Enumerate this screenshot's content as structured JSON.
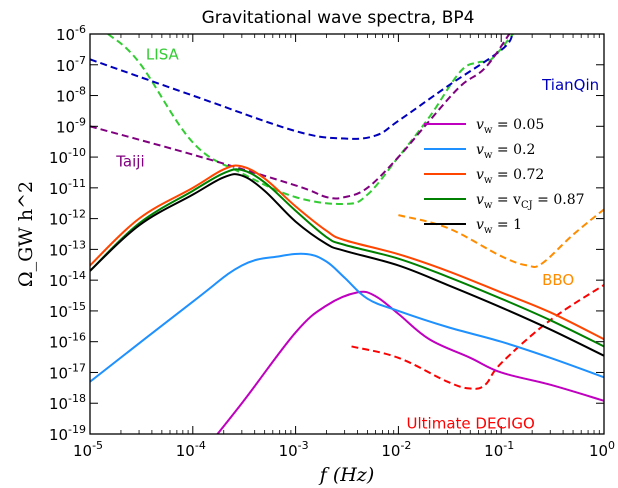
{
  "chart_data": {
    "type": "line",
    "title": "Gravitational wave spectra, BP4",
    "xlabel": "f (Hz)",
    "ylabel": "Ω_GW h^2",
    "xscale": "log",
    "yscale": "log",
    "xlim": [
      1e-05,
      1
    ],
    "ylim": [
      1e-19,
      1e-06
    ],
    "x_tick_exponents": [
      -5,
      -4,
      -3,
      -2,
      -1,
      0
    ],
    "y_tick_exponents": [
      -19,
      -18,
      -17,
      -16,
      -15,
      -14,
      -13,
      -12,
      -11,
      -10,
      -9,
      -8,
      -7,
      -6
    ],
    "tick_base": "10",
    "grid": false,
    "legend_position": "upper-right",
    "series": [
      {
        "name": "v_w = 0.05",
        "label_main": "v",
        "label_sub": "w",
        "label_rest": " = 0.05",
        "color": "#bf00bf",
        "style": "solid",
        "points": [
          [
            0.0001,
            1e-20
          ],
          [
            0.0003,
            1e-18
          ],
          [
            0.001,
            2e-16
          ],
          [
            0.002,
            1.5e-15
          ],
          [
            0.004,
            4e-15
          ],
          [
            0.006,
            3e-15
          ],
          [
            0.01,
            8e-16
          ],
          [
            0.02,
            1.2e-16
          ],
          [
            0.05,
            3e-17
          ],
          [
            0.1,
            1e-17
          ],
          [
            0.3,
            4e-18
          ],
          [
            1,
            1.2e-18
          ]
        ]
      },
      {
        "name": "v_w = 0.2",
        "label_main": "v",
        "label_sub": "w",
        "label_rest": " = 0.2",
        "color": "#1e90ff",
        "style": "solid",
        "points": [
          [
            1e-05,
            5e-18
          ],
          [
            0.0001,
            2e-15
          ],
          [
            0.0003,
            3e-14
          ],
          [
            0.0007,
            6e-14
          ],
          [
            0.0013,
            7e-14
          ],
          [
            0.002,
            4e-14
          ],
          [
            0.003,
            1.2e-14
          ],
          [
            0.005,
            2.5e-15
          ],
          [
            0.01,
            1e-15
          ],
          [
            0.03,
            3e-16
          ],
          [
            0.1,
            1e-16
          ],
          [
            0.3,
            3e-17
          ],
          [
            1,
            7e-18
          ]
        ]
      },
      {
        "name": "v_w = 0.72",
        "label_main": "v",
        "label_sub": "w",
        "label_rest": " = 0.72",
        "color": "#ff4500",
        "style": "solid",
        "points": [
          [
            1e-05,
            3e-14
          ],
          [
            3e-05,
            1e-12
          ],
          [
            0.0001,
            1e-11
          ],
          [
            0.0002,
            4e-11
          ],
          [
            0.0003,
            5e-11
          ],
          [
            0.0005,
            2e-11
          ],
          [
            0.001,
            2.5e-12
          ],
          [
            0.002,
            4e-13
          ],
          [
            0.003,
            2e-13
          ],
          [
            0.01,
            7e-14
          ],
          [
            0.03,
            2e-14
          ],
          [
            0.1,
            4e-15
          ],
          [
            0.3,
            9e-16
          ],
          [
            1,
            1.2e-16
          ]
        ]
      },
      {
        "name": "v_w = v_CJ = 0.87",
        "label_main": "v",
        "label_sub": "w",
        "label_rest": " = v",
        "label_sub2": "CJ",
        "label_rest2": " = 0.87",
        "color": "#008000",
        "style": "solid",
        "points": [
          [
            1e-05,
            2e-14
          ],
          [
            3e-05,
            7e-13
          ],
          [
            0.0001,
            8e-12
          ],
          [
            0.0002,
            3e-11
          ],
          [
            0.0003,
            3.8e-11
          ],
          [
            0.0005,
            1.5e-11
          ],
          [
            0.001,
            1.8e-12
          ],
          [
            0.002,
            2.5e-13
          ],
          [
            0.003,
            1.4e-13
          ],
          [
            0.01,
            5e-14
          ],
          [
            0.03,
            1.3e-14
          ],
          [
            0.1,
            2.5e-15
          ],
          [
            0.3,
            5e-16
          ],
          [
            1,
            7e-17
          ]
        ]
      },
      {
        "name": "v_w = 1",
        "label_main": "v",
        "label_sub": "w",
        "label_rest": " = 1",
        "color": "#000000",
        "style": "solid",
        "points": [
          [
            1e-05,
            2e-14
          ],
          [
            3e-05,
            6e-13
          ],
          [
            0.0001,
            6e-12
          ],
          [
            0.0002,
            2.2e-11
          ],
          [
            0.0003,
            2.5e-11
          ],
          [
            0.0005,
            8e-12
          ],
          [
            0.001,
            8e-13
          ],
          [
            0.002,
            1.5e-13
          ],
          [
            0.003,
            9e-14
          ],
          [
            0.01,
            3e-14
          ],
          [
            0.03,
            7e-15
          ],
          [
            0.1,
            1.3e-15
          ],
          [
            0.3,
            2.5e-16
          ],
          [
            1,
            3.5e-17
          ]
        ]
      }
    ],
    "sensitivity_curves": [
      {
        "name": "LISA",
        "color": "#33cc33",
        "style": "dashed",
        "points": [
          [
            1.5e-05,
            1e-06
          ],
          [
            3e-05,
            1.2e-07
          ],
          [
            0.0001,
            3e-10
          ],
          [
            0.0003,
            3e-11
          ],
          [
            0.001,
            5e-12
          ],
          [
            0.003,
            3e-12
          ],
          [
            0.005,
            6e-12
          ],
          [
            0.01,
            1e-10
          ],
          [
            0.02,
            2e-09
          ],
          [
            0.04,
            6e-08
          ],
          [
            0.06,
            1.2e-07
          ],
          [
            0.08,
            1.5e-07
          ],
          [
            0.13,
            1e-06
          ]
        ]
      },
      {
        "name": "TianQin",
        "color": "#0000bb",
        "style": "dashed",
        "points": [
          [
            1e-05,
            1.5e-07
          ],
          [
            0.0001,
            1e-08
          ],
          [
            0.001,
            7e-10
          ],
          [
            0.003,
            4e-10
          ],
          [
            0.006,
            5e-10
          ],
          [
            0.01,
            1.5e-09
          ],
          [
            0.03,
            2e-08
          ],
          [
            0.1,
            3e-07
          ],
          [
            0.13,
            1e-06
          ]
        ]
      },
      {
        "name": "Taiji",
        "color": "#800080",
        "style": "dashed",
        "points": [
          [
            1e-05,
            1e-09
          ],
          [
            0.0001,
            1.2e-10
          ],
          [
            0.001,
            1.2e-11
          ],
          [
            0.002,
            5e-12
          ],
          [
            0.003,
            5e-12
          ],
          [
            0.005,
            1e-11
          ],
          [
            0.01,
            1e-10
          ],
          [
            0.02,
            1.5e-09
          ],
          [
            0.04,
            2e-08
          ],
          [
            0.07,
            8e-08
          ],
          [
            0.12,
            1e-06
          ]
        ]
      },
      {
        "name": "BBO",
        "color": "#ff8c00",
        "style": "dashed",
        "points": [
          [
            0.01,
            1.3e-12
          ],
          [
            0.03,
            5e-13
          ],
          [
            0.1,
            6e-14
          ],
          [
            0.18,
            3e-14
          ],
          [
            0.25,
            3.5e-14
          ],
          [
            0.5,
            3e-13
          ],
          [
            1,
            2e-12
          ]
        ]
      },
      {
        "name": "Ultimate DECIGO",
        "color": "#ff0000",
        "style": "dashed",
        "points": [
          [
            0.0035,
            7e-17
          ],
          [
            0.01,
            3e-17
          ],
          [
            0.03,
            5e-18
          ],
          [
            0.05,
            3e-18
          ],
          [
            0.07,
            4e-18
          ],
          [
            0.1,
            2e-17
          ],
          [
            0.3,
            5e-16
          ],
          [
            1,
            7e-15
          ]
        ]
      }
    ],
    "annotations": [
      {
        "text": "LISA",
        "color": "#33cc33",
        "x": 3.5e-05,
        "y": 1.5e-07
      },
      {
        "text": "TianQin",
        "color": "#0000bb",
        "x": 0.25,
        "y": 1.5e-08
      },
      {
        "text": "Taiji",
        "color": "#800080",
        "x": 1.8e-05,
        "y": 5e-11
      },
      {
        "text": "BBO",
        "color": "#ff8c00",
        "x": 0.25,
        "y": 7e-15
      },
      {
        "text": "Ultimate DECIGO",
        "color": "#ff0000",
        "x": 0.012,
        "y": 1.5e-19
      }
    ]
  }
}
